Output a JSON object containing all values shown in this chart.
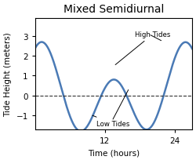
{
  "title": "Mixed Semidiurnal",
  "xlabel": "Time (hours)",
  "ylabel": "Tide Height (meters)",
  "line_color": "#4a7ab5",
  "line_width": 1.8,
  "dashed_color": "#333333",
  "background_color": "#ffffff",
  "xlim": [
    0,
    27
  ],
  "ylim": [
    -1.7,
    3.9
  ],
  "xticks": [
    12,
    24
  ],
  "yticks": [
    -1,
    0,
    1,
    2,
    3
  ],
  "title_fontsize": 10,
  "label_fontsize": 7.5,
  "tick_fontsize": 7.5,
  "A_m2": 1.75,
  "A_k1": 0.95,
  "period_m2": 12.42,
  "period_k1": 24.0,
  "phase_m2": 0.0,
  "phase_k1": 0.0
}
